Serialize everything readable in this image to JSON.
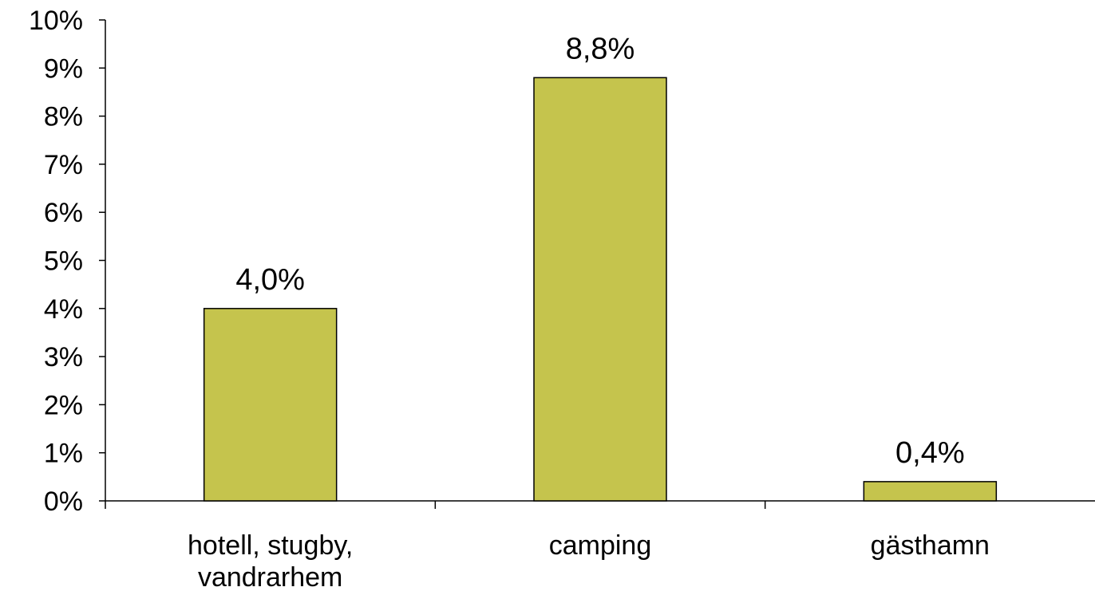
{
  "chart_data": {
    "type": "bar",
    "categories": [
      [
        "hotell, stugby,",
        "vandrarhem"
      ],
      [
        "camping"
      ],
      [
        "gästhamn"
      ]
    ],
    "values": [
      4.0,
      8.8,
      0.4
    ],
    "data_labels": [
      "4,0%",
      "8,8%",
      "0,4%"
    ],
    "y_ticks": [
      "0%",
      "1%",
      "2%",
      "3%",
      "4%",
      "5%",
      "6%",
      "7%",
      "8%",
      "9%",
      "10%"
    ],
    "ylim": [
      0,
      10
    ],
    "title": "",
    "xlabel": "",
    "ylabel": "",
    "grid": false,
    "bar_color": "#c5c44d"
  }
}
